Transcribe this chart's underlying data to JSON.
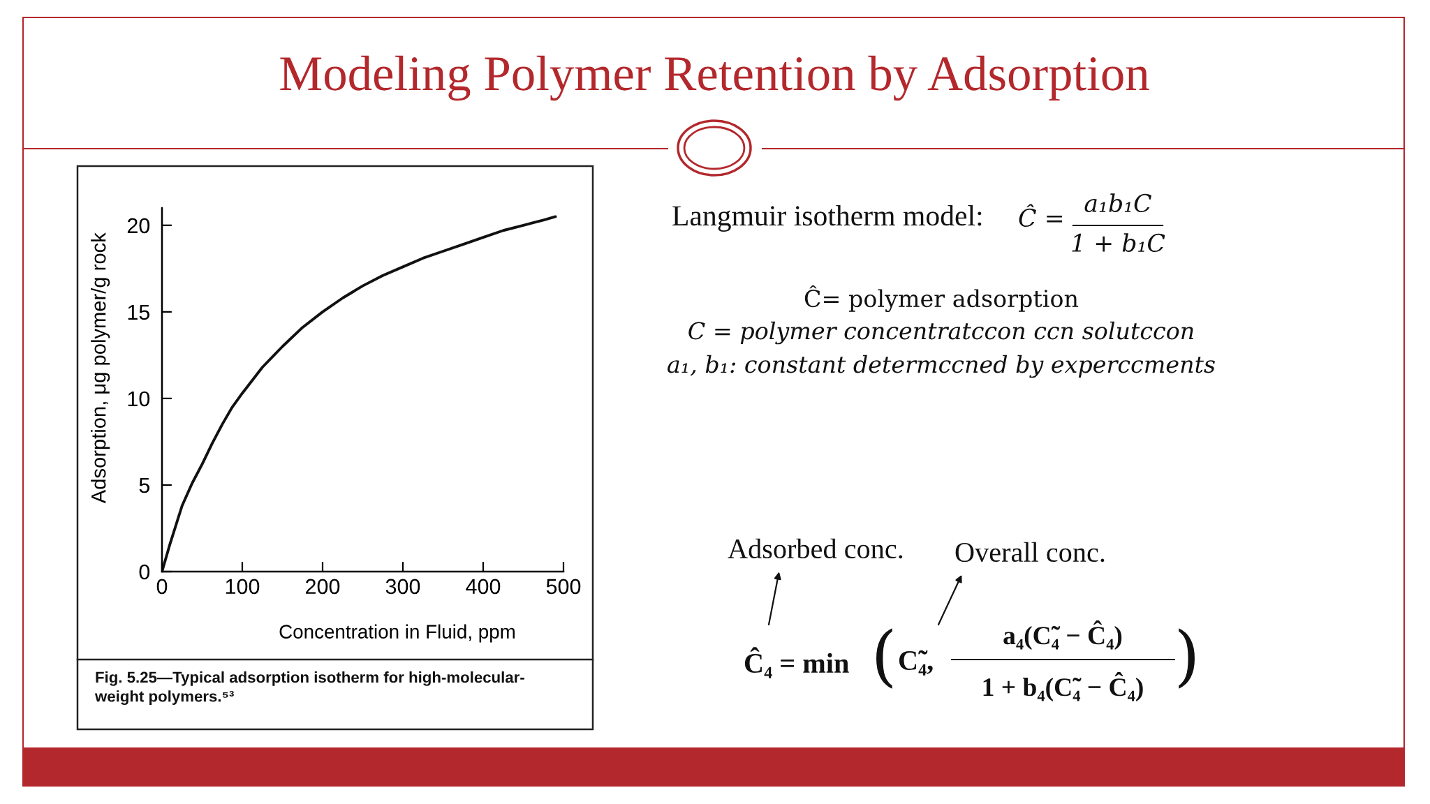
{
  "chart_data": {
    "type": "line",
    "title": "Modeling Polymer Retention by Adsorption",
    "xlabel": "Concentration in Fluid, ppm",
    "ylabel": "Adsorption, μg polymer/g rock",
    "x": [
      0,
      10,
      25,
      37.5,
      50,
      62.5,
      75,
      87.5,
      100,
      125,
      150,
      175,
      200,
      225,
      250,
      275,
      300,
      325,
      350,
      375,
      400,
      425,
      450,
      475,
      490
    ],
    "series": [
      {
        "color": "#111111",
        "values": [
          0,
          1.6,
          3.8,
          5.1,
          6.2,
          7.4,
          8.5,
          9.5,
          10.3,
          11.8,
          13.0,
          14.1,
          15.0,
          15.8,
          16.5,
          17.1,
          17.6,
          18.1,
          18.5,
          18.9,
          19.3,
          19.7,
          20.0,
          20.3,
          20.5
        ]
      }
    ],
    "xlim": [
      0,
      500
    ],
    "ylim": [
      0,
      21
    ],
    "xticks": [
      0,
      100,
      200,
      300,
      400,
      500
    ],
    "yticks": [
      0,
      5,
      10,
      15,
      20
    ],
    "line_style": "solid",
    "annotations": [
      "Fig. 5.25—Typical adsorption isotherm for high-molecular-\nweight polymers.⁵³",
      "Langmuir isotherm model:",
      "Ĉ =",
      "a₁b₁C",
      "1 + b₁C",
      "Ĉ= polymer adsorption",
      "C = polymer concentratccon ccn solutccon",
      "a₁, b₁: constant determccned by experccments",
      "Adsorbed conc.",
      "Overall conc.",
      "Ĉ₄ = min",
      "(",
      "C̃₄,",
      "a₄(C̃₄ − Ĉ₄)",
      "1 + b₄(C̃₄ − Ĉ₄)",
      ")"
    ]
  }
}
